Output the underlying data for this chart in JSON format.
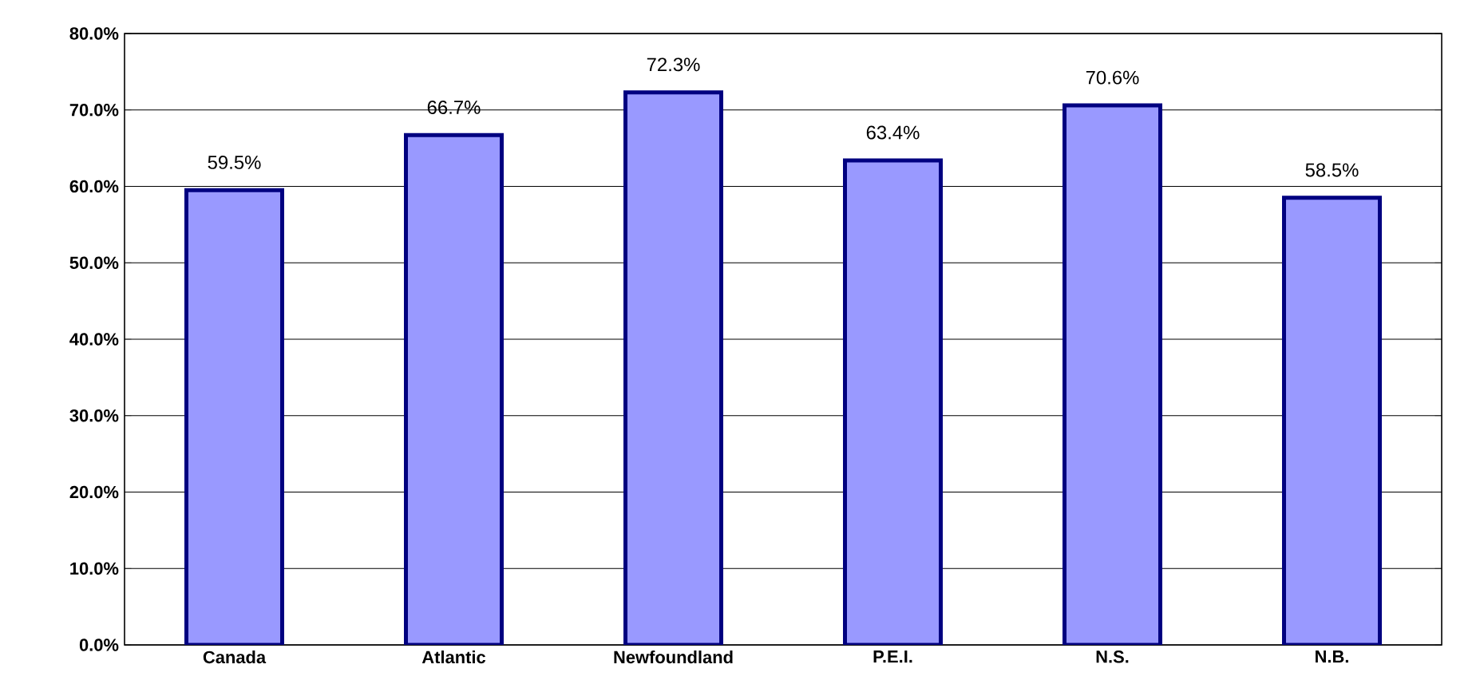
{
  "chart_data": {
    "type": "bar",
    "categories": [
      "Canada",
      "Atlantic",
      "Newfoundland",
      "P.E.I.",
      "N.S.",
      "N.B."
    ],
    "values": [
      59.5,
      66.7,
      72.3,
      63.4,
      70.6,
      58.5
    ],
    "value_labels": [
      "59.5%",
      "66.7%",
      "72.3%",
      "63.4%",
      "70.6%",
      "58.5%"
    ],
    "color": "#9999ff",
    "ylim": [
      0,
      80
    ],
    "yticks": [
      {
        "value": 0,
        "label": "0.0%"
      },
      {
        "value": 10,
        "label": "10.0%"
      },
      {
        "value": 20,
        "label": "20.0%"
      },
      {
        "value": 30,
        "label": "30.0%"
      },
      {
        "value": 40,
        "label": "40.0%"
      },
      {
        "value": 50,
        "label": "50.0%"
      },
      {
        "value": 60,
        "label": "60.0%"
      },
      {
        "value": 70,
        "label": "70.0%"
      },
      {
        "value": 80,
        "label": "80.0%"
      }
    ],
    "grid": "y"
  }
}
